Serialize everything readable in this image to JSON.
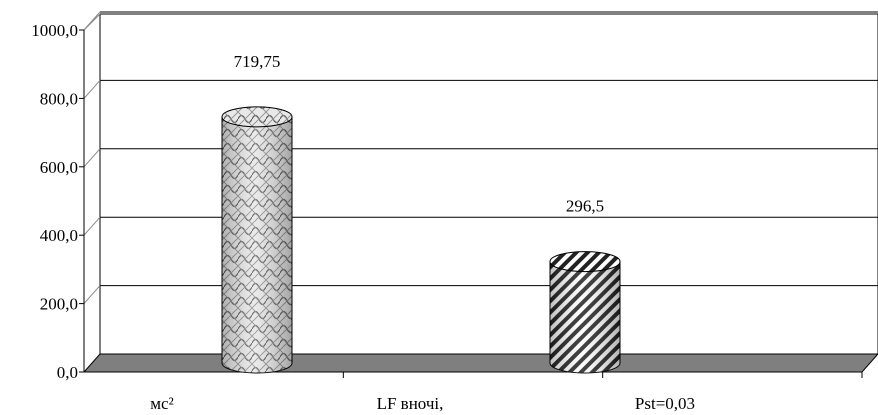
{
  "chart_data": {
    "type": "bar",
    "style": "3d-cylinder",
    "categories": [
      "мс²",
      "LF вночі,",
      "Pst=0,03"
    ],
    "series": [
      {
        "values": [
          719.75,
          null,
          296.5
        ]
      }
    ],
    "data_labels": [
      "719,75",
      "",
      "296,5"
    ],
    "y_ticks": [
      "0,0",
      "200,0",
      "400,0",
      "600,0",
      "800,0",
      "1000,0"
    ],
    "ylim": [
      0,
      1000
    ],
    "grid": true,
    "legend": "none",
    "colors": {
      "floor": "#7f7f7f",
      "bar1_pattern": "crosshatch-scales",
      "bar2_pattern": "diagonal-stripes"
    }
  }
}
